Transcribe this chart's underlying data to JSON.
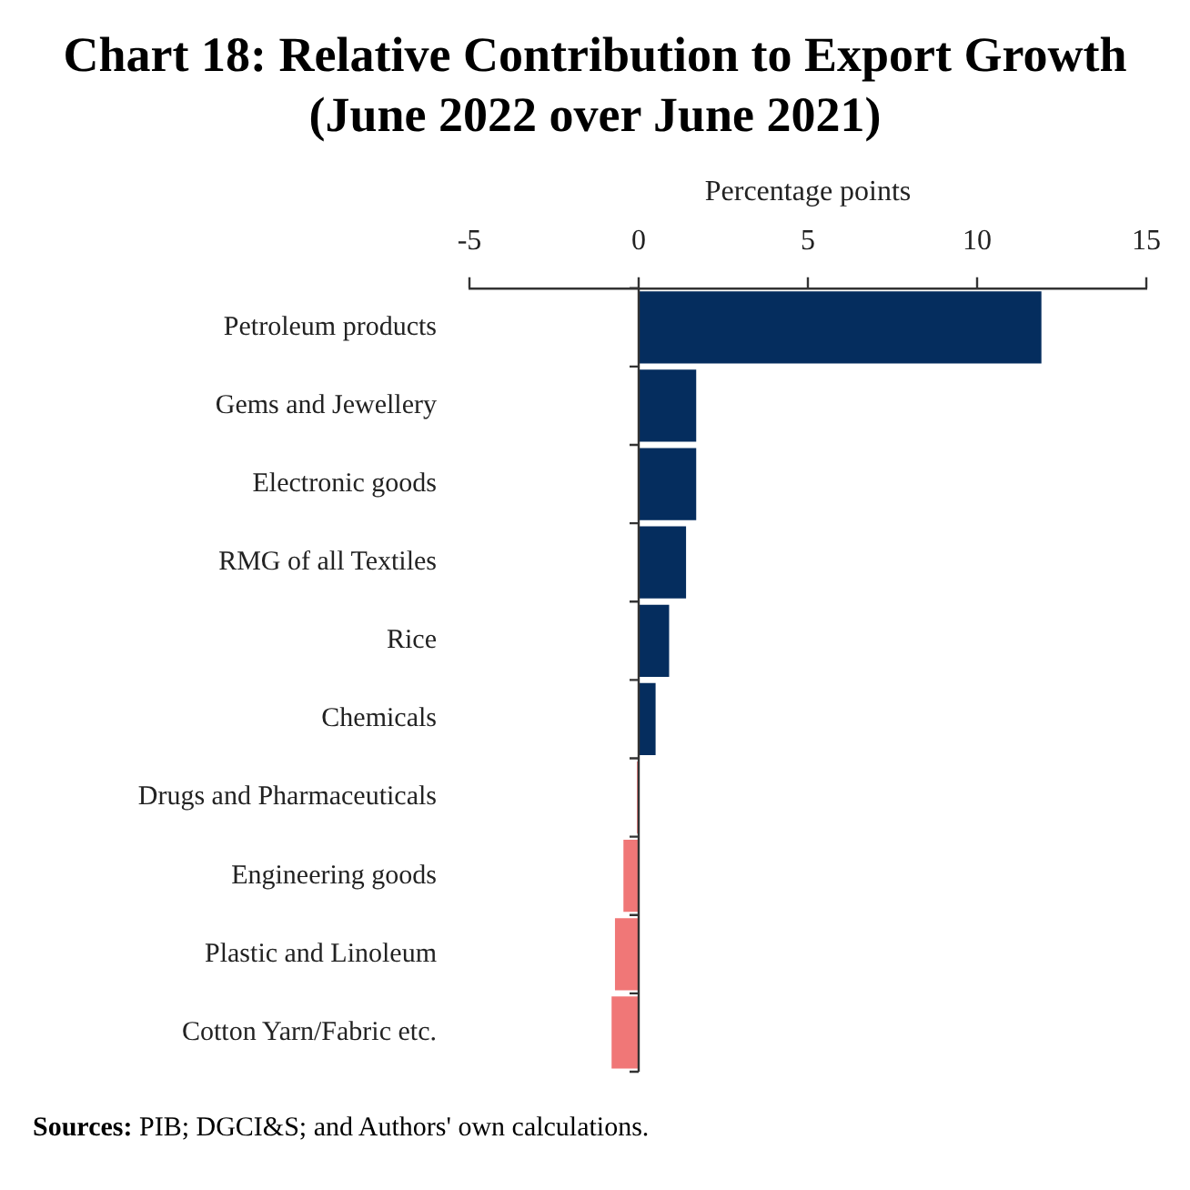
{
  "chart_data": {
    "type": "bar",
    "orientation": "horizontal",
    "title": "Chart 18: Relative Contribution to Export Growth (June 2022 over June 2021)",
    "xlabel": "Percentage points",
    "categories": [
      "Petroleum products",
      "Gems and Jewellery",
      "Electronic goods",
      "RMG of all Textiles",
      "Rice",
      "Chemicals",
      "Drugs and Pharmaceuticals",
      "Engineering goods",
      "Plastic and Linoleum",
      "Cotton Yarn/Fabric etc."
    ],
    "values": [
      11.9,
      1.7,
      1.7,
      1.4,
      0.9,
      0.5,
      -0.05,
      -0.45,
      -0.7,
      -0.8
    ],
    "colors": [
      "#052d5e",
      "#052d5e",
      "#052d5e",
      "#052d5e",
      "#052d5e",
      "#052d5e",
      "#f07777",
      "#f07777",
      "#f07777",
      "#f07777"
    ],
    "xlim": [
      -5,
      15
    ],
    "xticks": [
      -5,
      0,
      5,
      10,
      15
    ],
    "legend": false,
    "annotations": [
      "Sources: PIB; DGCI&S; and Authors' own calculations."
    ]
  }
}
